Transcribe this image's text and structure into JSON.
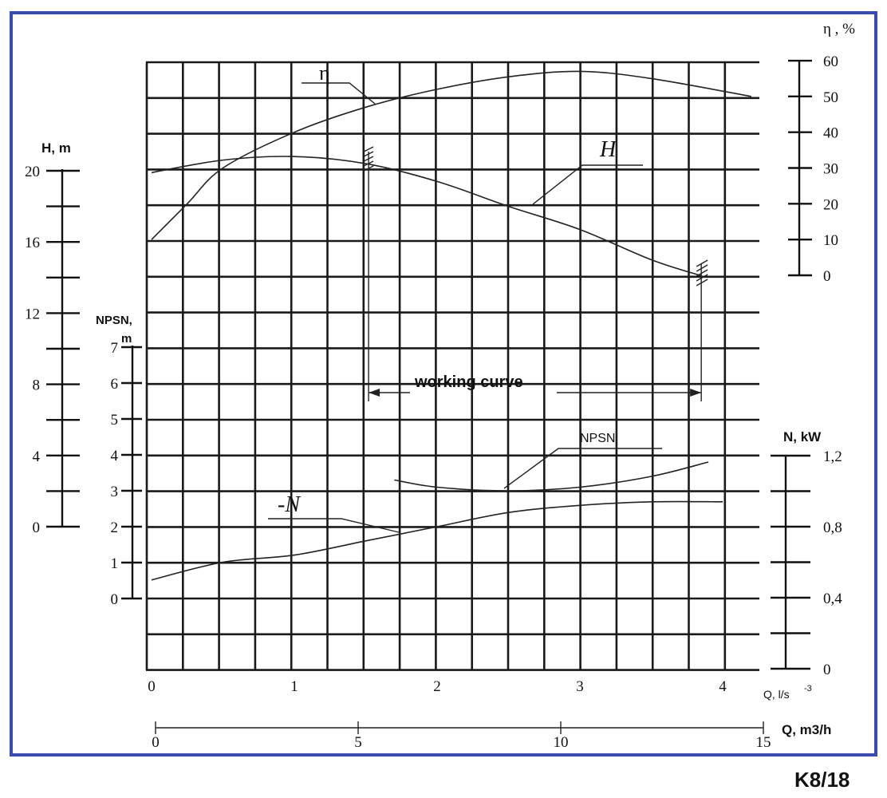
{
  "chart_data": {
    "type": "line",
    "model_label": "K8/18",
    "x_axis": {
      "label": "Q, l/s",
      "label_suffix": "-3",
      "range": [
        0,
        4.2
      ],
      "ticks": [
        "0",
        "1",
        "2",
        "3",
        "4"
      ]
    },
    "x2_axis": {
      "label": "Q, m3/h",
      "range": [
        0,
        15
      ],
      "ticks": [
        "0",
        "5",
        "10",
        "15"
      ]
    },
    "axes": {
      "H": {
        "label": "H, m",
        "range": [
          0,
          20
        ],
        "ticks": [
          "0",
          "4",
          "8",
          "12",
          "16",
          "20"
        ]
      },
      "NPSN": {
        "label_line1": "NPSN,",
        "label_line2": "m",
        "range": [
          0,
          7
        ],
        "ticks": [
          "0",
          "1",
          "2",
          "3",
          "4",
          "5",
          "6",
          "7"
        ]
      },
      "eta": {
        "label": "η , %",
        "range": [
          0,
          60
        ],
        "ticks": [
          "0",
          "10",
          "20",
          "30",
          "40",
          "50",
          "60"
        ]
      },
      "N": {
        "label": "N, kW",
        "range": [
          0,
          1.2
        ],
        "ticks": [
          "0",
          "0,4",
          "0,8",
          "1,2"
        ]
      }
    },
    "series": [
      {
        "name": "H",
        "label": "H",
        "axis": "H",
        "x": [
          0,
          0.5,
          1.0,
          1.5,
          2.0,
          2.5,
          3.0,
          3.5,
          3.85
        ],
        "y": [
          19.9,
          20.6,
          20.8,
          20.4,
          19.4,
          18.0,
          16.7,
          15.0,
          14.1
        ]
      },
      {
        "name": "η",
        "label": "η",
        "axis": "eta",
        "x": [
          0,
          0.25,
          0.5,
          1.0,
          1.5,
          2.0,
          2.5,
          3.0,
          3.5,
          4.2
        ],
        "y": [
          10,
          20,
          30,
          40,
          47,
          52,
          55.5,
          57,
          55,
          50
        ]
      },
      {
        "name": "N",
        "label": "-N",
        "axis": "N",
        "x": [
          0,
          0.5,
          1.0,
          1.5,
          2.0,
          2.5,
          3.0,
          3.5,
          4.0
        ],
        "y": [
          0.5,
          0.6,
          0.64,
          0.72,
          0.8,
          0.88,
          0.92,
          0.94,
          0.94
        ]
      },
      {
        "name": "NPSN",
        "label": "NPSN",
        "axis": "NPSN",
        "x": [
          1.7,
          2.0,
          2.5,
          3.0,
          3.5,
          3.9
        ],
        "y": [
          3.3,
          3.1,
          3.0,
          3.1,
          3.4,
          3.8
        ]
      }
    ],
    "working_range": {
      "label": "working curve",
      "x_start": 1.52,
      "x_end": 3.85
    },
    "grid": true
  }
}
